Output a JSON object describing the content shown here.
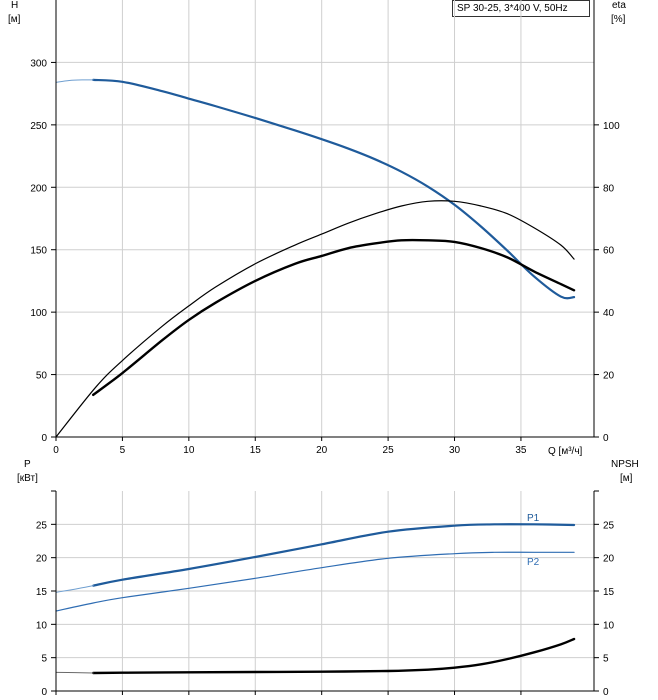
{
  "chart_data": [
    {
      "type": "line",
      "panel": "upper",
      "legend_text": "SP 30-25, 3*400 V, 50Hz",
      "left_axis_label": [
        "H",
        "[м]"
      ],
      "right_axis_label": [
        "eta",
        "[%]"
      ],
      "x_axis_label": "Q [м³/ч]",
      "x_ticks": [
        0,
        5,
        10,
        15,
        20,
        25,
        30,
        35
      ],
      "xlim": [
        0,
        40.5
      ],
      "left_ticks": [
        0,
        50,
        100,
        150,
        200,
        250,
        300
      ],
      "ylim_left": [
        0,
        350
      ],
      "right_ticks": [
        0,
        20,
        40,
        60,
        80,
        100
      ],
      "ylim_right": [
        0,
        140
      ],
      "grid": true,
      "series": [
        {
          "id": "H",
          "axis": "left",
          "color": "#1f5b9b",
          "width": 2.2,
          "x": [
            2.8,
            5,
            8,
            10,
            12,
            15,
            18,
            20,
            22,
            24,
            26,
            28,
            30,
            32,
            34,
            36,
            38,
            39
          ],
          "y": [
            286,
            284.5,
            277,
            271,
            265,
            255.5,
            245.5,
            238.5,
            231,
            222.5,
            212.5,
            200.5,
            186,
            168.5,
            149,
            128.5,
            112.5,
            112
          ]
        },
        {
          "id": "H-extension",
          "axis": "left",
          "color": "#6f9fd0",
          "width": 1,
          "x": [
            0,
            1,
            2,
            2.8
          ],
          "y": [
            284,
            285.5,
            286,
            286
          ]
        },
        {
          "id": "eta-upper",
          "axis": "right",
          "color": "#000000",
          "width": 1.2,
          "x": [
            0,
            3,
            5,
            8,
            10,
            12,
            15,
            18,
            20,
            22,
            24,
            26,
            28,
            30,
            32,
            34,
            36,
            38,
            39
          ],
          "y": [
            0,
            16,
            24.5,
            35.5,
            42,
            48,
            55.5,
            61.5,
            65,
            68.5,
            71.5,
            74,
            75.5,
            75.5,
            74,
            71.5,
            67,
            61.5,
            57
          ]
        },
        {
          "id": "eta-lower",
          "axis": "right",
          "color": "#000000",
          "width": 2.4,
          "x": [
            2.8,
            5,
            8,
            10,
            12,
            15,
            18,
            20,
            22,
            24,
            26,
            28,
            30,
            32,
            34,
            36,
            38,
            39
          ],
          "y": [
            13.5,
            20.5,
            31,
            37.5,
            43,
            50,
            55.5,
            58,
            60.5,
            62,
            63,
            63,
            62.5,
            60.5,
            57.5,
            53,
            49,
            47
          ]
        }
      ]
    },
    {
      "type": "line",
      "panel": "lower",
      "left_axis_label": [
        "P",
        "[кВт]"
      ],
      "right_axis_label": [
        "NPSH",
        "[м]"
      ],
      "xlim": [
        0,
        40.5
      ],
      "left_ticks": [
        0,
        5,
        10,
        15,
        20,
        25
      ],
      "ylim_left": [
        0,
        30
      ],
      "right_ticks": [
        0,
        5,
        10,
        15,
        20,
        25
      ],
      "ylim_right": [
        0,
        30
      ],
      "grid": true,
      "series": [
        {
          "id": "P1",
          "name": "P1",
          "axis": "left",
          "color": "#1f5b9b",
          "width": 2.2,
          "x": [
            2.8,
            5,
            10,
            15,
            20,
            25,
            30,
            33,
            36,
            39
          ],
          "y": [
            15.8,
            16.7,
            18.3,
            20.1,
            22.0,
            23.9,
            24.8,
            25.0,
            25.0,
            24.9
          ]
        },
        {
          "id": "P1-extension",
          "axis": "left",
          "color": "#6f9fd0",
          "width": 1,
          "x": [
            0,
            1.5,
            2.8
          ],
          "y": [
            14.8,
            15.3,
            15.8
          ]
        },
        {
          "id": "P2",
          "name": "P2",
          "axis": "left",
          "color": "#2f6db3",
          "width": 1.2,
          "x": [
            0,
            2.8,
            5,
            10,
            15,
            20,
            25,
            30,
            33,
            36,
            39
          ],
          "y": [
            12.0,
            13.2,
            14.0,
            15.4,
            16.9,
            18.5,
            19.9,
            20.6,
            20.8,
            20.8,
            20.8
          ]
        },
        {
          "id": "NPSH",
          "axis": "right",
          "color": "#000000",
          "width": 2.4,
          "x": [
            2.8,
            5,
            10,
            15,
            20,
            25,
            28,
            30,
            32,
            34,
            36,
            38,
            39
          ],
          "y": [
            2.7,
            2.75,
            2.8,
            2.85,
            2.9,
            3.0,
            3.2,
            3.5,
            4.0,
            4.8,
            5.8,
            7.0,
            7.8
          ]
        },
        {
          "id": "NPSH-extension",
          "axis": "right",
          "color": "#6a6a6a",
          "width": 1,
          "x": [
            0,
            1.5,
            2.8
          ],
          "y": [
            2.8,
            2.75,
            2.7
          ]
        }
      ]
    }
  ]
}
